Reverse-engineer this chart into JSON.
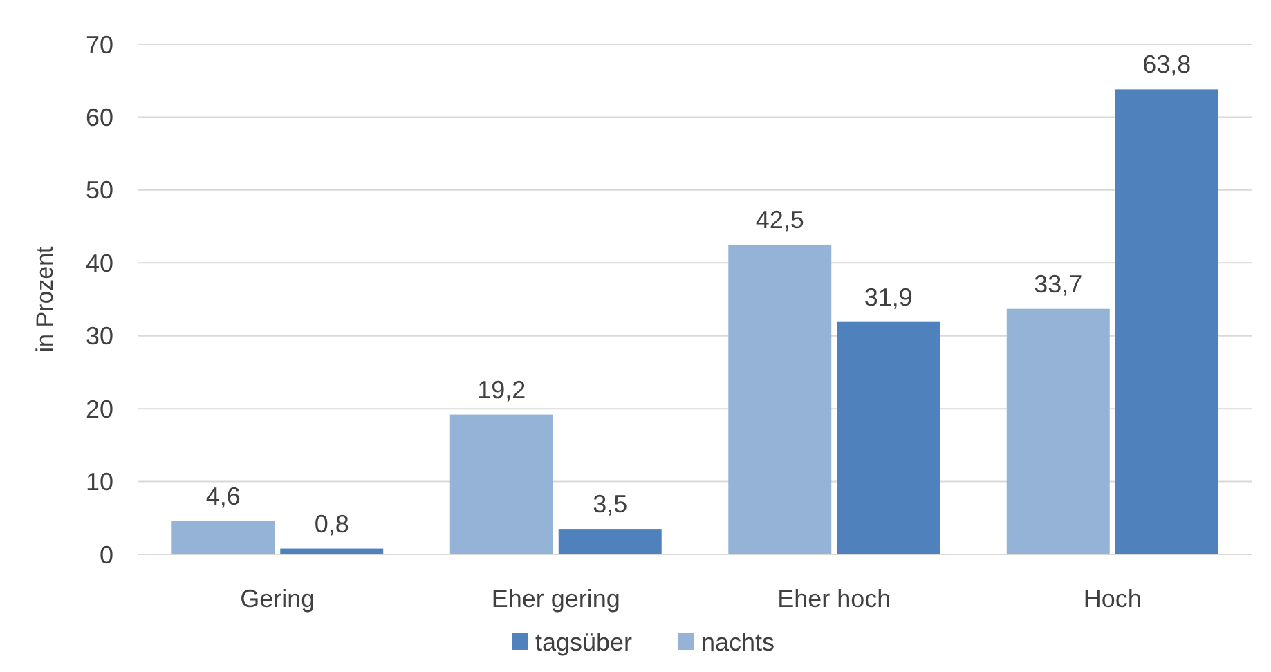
{
  "chart_data": {
    "type": "bar",
    "ylabel": "in Prozent",
    "categories": [
      "Gering",
      "Eher gering",
      "Eher hoch",
      "Hoch"
    ],
    "series": [
      {
        "name": "nachts",
        "color": "#95b3d7",
        "values": [
          4.6,
          19.2,
          42.5,
          33.7
        ],
        "value_labels": [
          "4,6",
          "19,2",
          "42,5",
          "33,7"
        ]
      },
      {
        "name": "tagsüber",
        "color": "#4f81bd",
        "values": [
          0.8,
          3.5,
          31.9,
          63.8
        ],
        "value_labels": [
          "0,8",
          "3,5",
          "31,9",
          "63,8"
        ]
      }
    ],
    "ylim": [
      0,
      70
    ],
    "yticks": [
      0,
      10,
      20,
      30,
      40,
      50,
      60,
      70
    ],
    "grid": "y",
    "legend": "bottom"
  }
}
